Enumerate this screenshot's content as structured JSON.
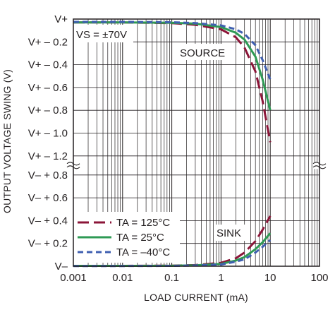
{
  "chart_data": {
    "type": "line",
    "title": "",
    "xlabel": "LOAD CURRENT (mA)",
    "ylabel": "OUTPUT VOLTAGE SWING (V)",
    "xscale": "log",
    "xlim": [
      0.001,
      100
    ],
    "grid": true,
    "x_ticks": [
      "0.001",
      "0.01",
      "0.1",
      "1",
      "10",
      "100"
    ],
    "upper_y_ticks": [
      "V+",
      "V+ – 0.2",
      "V+ – 0.4",
      "V+ – 0.6",
      "V+ – 0.8",
      "V+ – 1.0",
      "V+ – 1.2"
    ],
    "lower_y_ticks": [
      "V– + 0.8",
      "V– + 0.6",
      "V– + 0.4",
      "V– + 0.2",
      "V–"
    ],
    "annotations": {
      "supply": "VS = ±70V",
      "source": "SOURCE",
      "sink": "SINK"
    },
    "legend_position": "bottom-left",
    "series": [
      {
        "name": "TA = 125°C",
        "color": "#8b1538",
        "dash": "long-dash",
        "source_x": [
          0.001,
          0.01,
          0.1,
          0.3,
          1,
          2,
          3,
          5,
          7,
          10
        ],
        "source_y": [
          -0.03,
          -0.03,
          -0.035,
          -0.05,
          -0.09,
          -0.16,
          -0.25,
          -0.46,
          -0.72,
          -1.08
        ],
        "sink_x": [
          0.001,
          0.01,
          0.1,
          0.3,
          1,
          2,
          3,
          5,
          7,
          10
        ],
        "sink_y": [
          0.003,
          0.003,
          0.005,
          0.01,
          0.03,
          0.07,
          0.12,
          0.22,
          0.32,
          0.44
        ]
      },
      {
        "name": "TA = 25°C",
        "color": "#2e9a54",
        "dash": "solid",
        "source_x": [
          0.001,
          0.01,
          0.1,
          0.3,
          1,
          2,
          3,
          5,
          7,
          10
        ],
        "source_y": [
          -0.03,
          -0.03,
          -0.032,
          -0.04,
          -0.07,
          -0.12,
          -0.18,
          -0.33,
          -0.53,
          -0.8
        ],
        "sink_x": [
          0.001,
          0.01,
          0.1,
          0.3,
          1,
          2,
          3,
          5,
          7,
          10
        ],
        "sink_y": [
          0.003,
          0.003,
          0.004,
          0.008,
          0.02,
          0.05,
          0.08,
          0.15,
          0.21,
          0.29
        ]
      },
      {
        "name": "TA = –40°C",
        "color": "#3f5fb0",
        "dash": "short-dash",
        "source_x": [
          0.001,
          0.01,
          0.1,
          0.3,
          1,
          2,
          3,
          5,
          7,
          10
        ],
        "source_y": [
          -0.025,
          -0.025,
          -0.028,
          -0.035,
          -0.055,
          -0.09,
          -0.13,
          -0.23,
          -0.36,
          -0.53
        ],
        "sink_x": [
          0.001,
          0.01,
          0.1,
          0.3,
          1,
          2,
          3,
          5,
          7,
          10
        ],
        "sink_y": [
          0.002,
          0.002,
          0.003,
          0.006,
          0.015,
          0.04,
          0.06,
          0.12,
          0.17,
          0.23
        ]
      }
    ]
  }
}
